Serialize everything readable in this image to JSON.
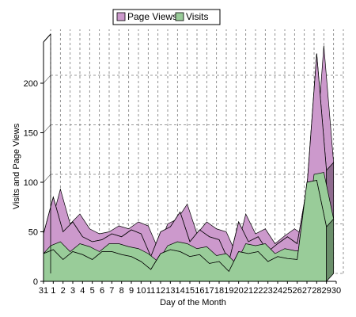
{
  "chart_data": {
    "type": "area",
    "title": "",
    "xlabel": "Day of the Month",
    "ylabel": "Visits and Page Views",
    "categories": [
      "31",
      "1",
      "2",
      "3",
      "4",
      "5",
      "6",
      "7",
      "8",
      "9",
      "10",
      "11",
      "12",
      "13",
      "14",
      "15",
      "16",
      "17",
      "18",
      "19",
      "20",
      "21",
      "22",
      "23",
      "24",
      "25",
      "26",
      "27",
      "28",
      "29",
      "30"
    ],
    "series": [
      {
        "name": "Page Views",
        "color": "#cc99cc",
        "values": [
          48,
          85,
          50,
          60,
          45,
          40,
          42,
          48,
          45,
          52,
          48,
          25,
          50,
          55,
          70,
          40,
          52,
          45,
          42,
          20,
          60,
          40,
          45,
          30,
          38,
          45,
          38,
          95,
          230,
          112,
          null
        ]
      },
      {
        "name": "Visits",
        "color": "#99cc99",
        "values": [
          28,
          32,
          22,
          30,
          27,
          22,
          30,
          30,
          27,
          25,
          20,
          12,
          28,
          32,
          30,
          25,
          27,
          18,
          20,
          10,
          30,
          28,
          30,
          20,
          25,
          23,
          22,
          100,
          102,
          55,
          null
        ]
      }
    ],
    "yticks": [
      0,
      50,
      100,
      150,
      200
    ],
    "ylim": [
      0,
      240
    ],
    "grid": true,
    "legend": "top-center"
  }
}
